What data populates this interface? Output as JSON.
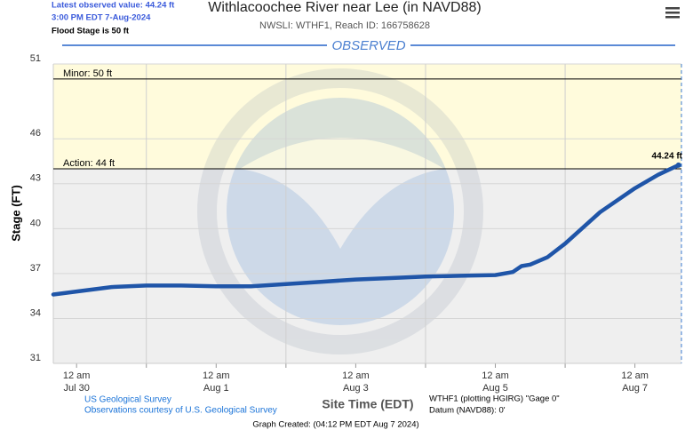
{
  "chart_data": {
    "type": "line",
    "title": "Withlacoochee River near Lee (in NAVD88)",
    "subtitle": "NWSLI: WTHF1, Reach ID: 166758628",
    "section_label": "OBSERVED",
    "latest_info": [
      "Latest observed value: 44.24 ft",
      "3:00 PM EDT 7-Aug-2024"
    ],
    "flood_stage_note": "Flood Stage is 50 ft",
    "y_label": "Stage (FT)",
    "x_label": "Site Time (EDT)",
    "source_lines": [
      "US Geological Survey",
      "Observations courtesy of U.S. Geological Survey"
    ],
    "gage_lines": [
      "WTHF1 (plotting HGIRG) \"Gage 0\"",
      "Datum (NAVD88): 0'"
    ],
    "created": "Graph Created: (04:12 PM EDT Aug 7 2024)",
    "thresholds": [
      {
        "label": "Minor: 50 ft",
        "value": 50
      },
      {
        "label": "Action: 44 ft",
        "value": 44
      }
    ],
    "color": "#1f55a8",
    "grid": true,
    "xlim": [
      "Jul 29 16:00",
      "Aug 7 16:00"
    ],
    "ylim": [
      31,
      51
    ],
    "yticks": [
      31,
      34,
      37,
      40,
      43,
      46,
      51
    ],
    "xticks": [
      {
        "value": "Jul 30 00:00",
        "label": [
          "12 am",
          "Jul 30"
        ]
      },
      "Jul 31 00:00",
      {
        "value": "Aug 1 00:00",
        "label": [
          "12 am",
          "Aug 1"
        ]
      },
      "Aug 2 00:00",
      {
        "value": "Aug 3 00:00",
        "label": [
          "12 am",
          "Aug 3"
        ]
      },
      "Aug 4 00:00",
      {
        "value": "Aug 5 00:00",
        "label": [
          "12 am",
          "Aug 5"
        ]
      },
      "Aug 6 00:00",
      {
        "value": "Aug 7 00:00",
        "label": [
          "12 am",
          "Aug 7"
        ]
      }
    ],
    "x": [
      "Jul 29 16:00",
      "Jul 30 00:00",
      "Jul 30 12:00",
      "Jul 31 00:00",
      "Jul 31 12:00",
      "Aug 1 00:00",
      "Aug 1 12:00",
      "Aug 2 00:00",
      "Aug 2 12:00",
      "Aug 3 00:00",
      "Aug 3 12:00",
      "Aug 4 00:00",
      "Aug 4 12:00",
      "Aug 5 00:00",
      "Aug 5 06:00",
      "Aug 5 09:00",
      "Aug 5 12:00",
      "Aug 5 18:00",
      "Aug 6 00:00",
      "Aug 6 12:00",
      "Aug 7 00:00",
      "Aug 7 08:00",
      "Aug 7 15:00"
    ],
    "values": [
      35.6,
      35.8,
      36.1,
      36.2,
      36.2,
      36.15,
      36.15,
      36.3,
      36.45,
      36.6,
      36.7,
      36.8,
      36.85,
      36.9,
      37.1,
      37.5,
      37.6,
      38.1,
      39.0,
      41.1,
      42.7,
      43.6,
      44.24
    ],
    "value_labels": [
      null,
      null,
      null,
      null,
      null,
      null,
      null,
      null,
      null,
      null,
      null,
      null,
      null,
      null,
      null,
      null,
      null,
      null,
      null,
      null,
      null,
      null,
      "44.24 ft"
    ]
  }
}
